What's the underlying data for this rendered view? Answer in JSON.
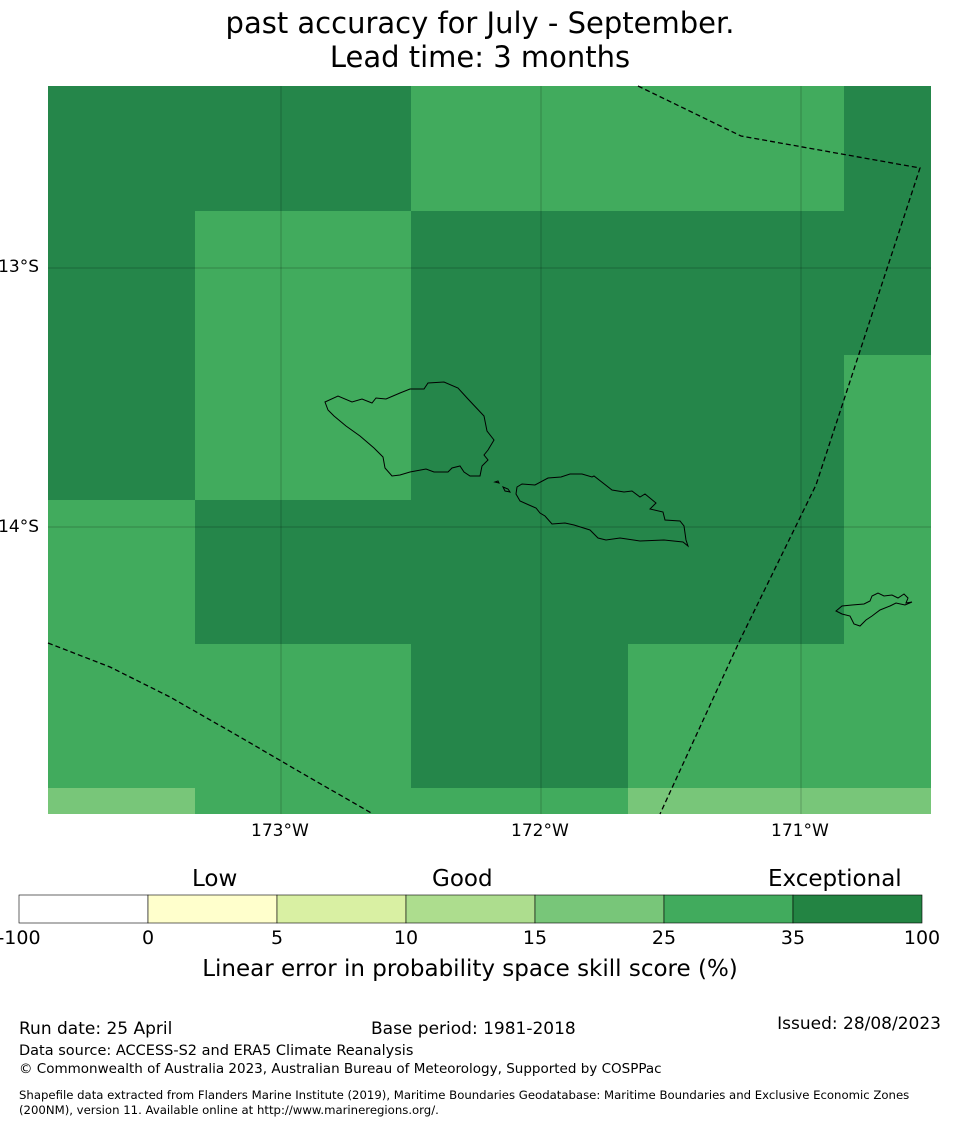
{
  "title": {
    "line1": "past accuracy for July - September.",
    "line2": "Lead time: 3 months"
  },
  "map": {
    "lat_labels": [
      "13°S",
      "14°S"
    ],
    "lon_labels": [
      "173°W",
      "172°W",
      "171°W"
    ],
    "colors": {
      "exceptional": "#25864a",
      "score_25_35": "#41ab5d",
      "score_15_25": "#78c679",
      "land_outline": "#000000",
      "eez_boundary": "#000000"
    }
  },
  "legend": {
    "category_labels": [
      "Low",
      "Good",
      "Exceptional"
    ],
    "bins": [
      {
        "from": "-100",
        "to": "0",
        "color": "#ffffff"
      },
      {
        "from": "0",
        "to": "5",
        "color": "#ffffcc"
      },
      {
        "from": "5",
        "to": "10",
        "color": "#d9f0a3"
      },
      {
        "from": "10",
        "to": "15",
        "color": "#addd8e"
      },
      {
        "from": "15",
        "to": "25",
        "color": "#78c679"
      },
      {
        "from": "25",
        "to": "35",
        "color": "#41ab5d"
      },
      {
        "from": "35",
        "to": "100",
        "color": "#238443"
      }
    ],
    "tick_labels": [
      "-100",
      "0",
      "5",
      "10",
      "15",
      "25",
      "35",
      "100"
    ],
    "title": "Linear error in probability space skill score (%)"
  },
  "footer": {
    "run_date": "Run date: 25 April",
    "base_period": "Base period: 1981-2018",
    "issued": "Issued: 28/08/2023",
    "data_source": "Data source: ACCESS-S2 and ERA5 Climate Reanalysis",
    "copyright": "© Commonwealth of Australia 2023, Australian Bureau of Meteorology, Supported by COSPPac",
    "shapefile_line1": "Shapefile data extracted from Flanders Marine Institute (2019), Maritime Boundaries Geodatabase: Maritime Boundaries and Exclusive Economic Zones",
    "shapefile_line2": "(200NM), version 11. Available online at http://www.marineregions.org/."
  }
}
